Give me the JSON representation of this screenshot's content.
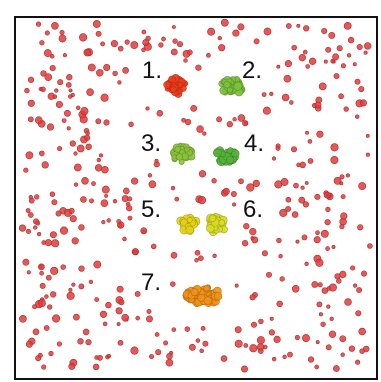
{
  "labels": {
    "l1": "1.",
    "l2": "2.",
    "l3": "3.",
    "l4": "4.",
    "l5": "5.",
    "l6": "6.",
    "l7": "7."
  },
  "colors": {
    "background_dot": "#e23b3b",
    "cluster_1": "#ee3b1a",
    "cluster_2": "#7bc13b",
    "cluster_3": "#8bc23a",
    "cluster_4": "#55b23a",
    "cluster_5": "#e6d21a",
    "cluster_6": "#d9dc24",
    "cluster_7": "#f29118"
  }
}
